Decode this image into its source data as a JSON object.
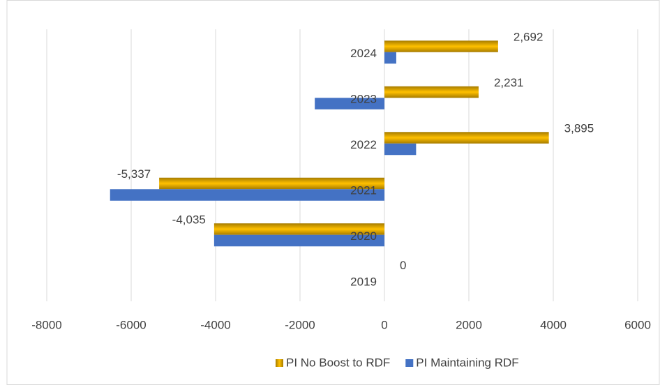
{
  "chart_data": {
    "type": "hbar",
    "categories": [
      "2019",
      "2020",
      "2021",
      "2022",
      "2023",
      "2024"
    ],
    "series": [
      {
        "name": "PI No Boost to RDF",
        "color": "#bf9000",
        "values": [
          0,
          -4035,
          -5337,
          3895,
          2231,
          2692
        ],
        "value_labels": [
          "0",
          "-4,035",
          "-5,337",
          "3,895",
          "2,231",
          "2,692"
        ]
      },
      {
        "name": "PI Maintaining RDF",
        "color": "#4472c4",
        "values": [
          0,
          -4035,
          -6500,
          750,
          -1650,
          280
        ]
      }
    ],
    "xlim": [
      -8000,
      6000
    ],
    "xticks": [
      -8000,
      -6000,
      -4000,
      -2000,
      0,
      2000,
      4000,
      6000
    ],
    "grid": true,
    "legend": "bottom"
  }
}
